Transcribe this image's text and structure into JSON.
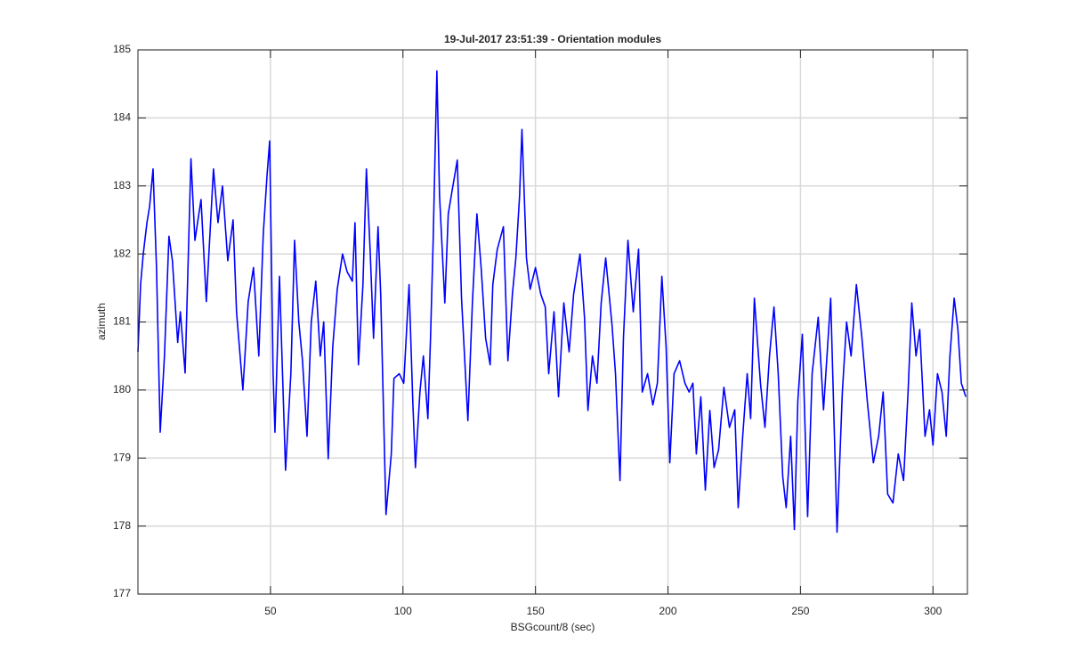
{
  "chart_data": {
    "type": "line",
    "title": "19-Jul-2017 23:51:39 - Orientation modules",
    "x_label": "BSGcount/8 (sec)",
    "y_label": "azimuth",
    "xlim": [
      0,
      313
    ],
    "xticks": [
      50,
      100,
      150,
      200,
      250,
      300
    ],
    "ylim": [
      177,
      185
    ],
    "yticks": [
      177,
      178,
      179,
      180,
      181,
      182,
      183,
      184,
      185
    ],
    "grid": true,
    "x": [
      0,
      1,
      2,
      3.4,
      4.4,
      5.7,
      7,
      8.4,
      10,
      11.7,
      13,
      15,
      16,
      17.8,
      20,
      21.5,
      23.8,
      25.8,
      28.5,
      30.2,
      31.9,
      33.9,
      35.9,
      37.2,
      39.6,
      41.6,
      43.6,
      45.6,
      47.3,
      48.7,
      49.7,
      51,
      51.7,
      53.4,
      55.7,
      57.7,
      59.1,
      60.7,
      62.1,
      63.8,
      65.4,
      67.1,
      68.8,
      70.1,
      71.8,
      73.5,
      75.2,
      77.2,
      78.9,
      80.9,
      81.9,
      83.2,
      84.9,
      86.2,
      87.6,
      88.9,
      90.6,
      91.6,
      93.6,
      95.6,
      96.6,
      98.6,
      100.3,
      102.3,
      103.7,
      104.7,
      106.4,
      107.7,
      109.4,
      110.4,
      111.4,
      112.8,
      113.8,
      115.8,
      117.1,
      118.5,
      120.5,
      122.1,
      124.5,
      126.2,
      127.9,
      129.5,
      131.2,
      132.9,
      133.9,
      135.6,
      137.9,
      139.6,
      141.3,
      142.6,
      144,
      144.9,
      146.6,
      148,
      150,
      152,
      153.7,
      155,
      157,
      158.7,
      160.7,
      162.7,
      164.4,
      166.8,
      168.5,
      169.8,
      171.5,
      173.2,
      174.8,
      176.5,
      178.9,
      180.2,
      181.9,
      183.2,
      184.9,
      186.9,
      188.9,
      190.3,
      192.3,
      194.3,
      196,
      197.7,
      199.3,
      200.7,
      202.3,
      204.4,
      206.4,
      208,
      209.4,
      210.7,
      212.4,
      214.1,
      215.8,
      217.4,
      219.1,
      221.1,
      223.2,
      225.2,
      226.5,
      228.2,
      229.9,
      231.2,
      232.6,
      234.9,
      236.6,
      238.3,
      240,
      241.6,
      243.3,
      244.6,
      246.3,
      247.7,
      249,
      250.7,
      252.7,
      254.4,
      256.7,
      258.7,
      261.4,
      263.8,
      265.8,
      267.4,
      269.1,
      271.1,
      273.2,
      275.2,
      277.5,
      279.5,
      281.2,
      282.9,
      284.9,
      286.9,
      288.9,
      290.6,
      292,
      293.6,
      295,
      297,
      298.7,
      300,
      301.7,
      303.4,
      305,
      306.4,
      308,
      309.4,
      310.7,
      312.4
    ],
    "series": [
      {
        "name": "azimuth",
        "color": "#0000ff",
        "values": [
          180.56,
          181.55,
          182.0,
          182.46,
          182.7,
          183.25,
          181.8,
          179.38,
          180.5,
          182.26,
          181.9,
          180.7,
          181.15,
          180.25,
          183.4,
          182.2,
          182.8,
          181.3,
          183.25,
          182.46,
          183.0,
          181.9,
          182.5,
          181.15,
          180.0,
          181.3,
          181.8,
          180.5,
          182.3,
          183.15,
          183.66,
          180.24,
          179.38,
          181.67,
          178.82,
          180.24,
          182.2,
          181.0,
          180.43,
          179.32,
          181.0,
          181.6,
          180.5,
          181.0,
          178.99,
          180.63,
          181.48,
          182.0,
          181.74,
          181.6,
          182.46,
          180.37,
          181.55,
          183.25,
          182.07,
          180.76,
          182.4,
          181.41,
          178.17,
          179.06,
          180.17,
          180.24,
          180.1,
          181.55,
          179.84,
          178.86,
          179.97,
          180.5,
          179.58,
          180.76,
          182.2,
          184.69,
          182.86,
          181.28,
          182.59,
          182.92,
          183.38,
          181.35,
          179.55,
          181.28,
          182.59,
          181.8,
          180.76,
          180.37,
          181.55,
          182.07,
          182.4,
          180.43,
          181.41,
          181.94,
          182.85,
          183.83,
          181.94,
          181.48,
          181.8,
          181.41,
          181.22,
          180.24,
          181.15,
          179.9,
          181.28,
          180.56,
          181.41,
          182.0,
          181.07,
          179.7,
          180.5,
          180.1,
          181.28,
          181.94,
          180.95,
          180.24,
          178.67,
          180.76,
          182.2,
          181.15,
          182.07,
          179.97,
          180.24,
          179.78,
          180.1,
          181.67,
          180.63,
          178.93,
          180.24,
          180.43,
          180.1,
          179.97,
          180.1,
          179.06,
          179.9,
          178.53,
          179.7,
          178.86,
          179.12,
          180.04,
          179.45,
          179.71,
          178.27,
          179.32,
          180.24,
          179.58,
          181.35,
          180.1,
          179.45,
          180.5,
          181.22,
          180.24,
          178.73,
          178.27,
          179.32,
          177.95,
          179.84,
          180.82,
          178.14,
          180.24,
          181.07,
          179.71,
          181.35,
          177.91,
          179.97,
          181.0,
          180.5,
          181.55,
          180.76,
          179.84,
          178.93,
          179.32,
          179.97,
          178.47,
          178.34,
          179.06,
          178.67,
          179.97,
          181.28,
          180.5,
          180.89,
          179.32,
          179.71,
          179.19,
          180.24,
          179.97,
          179.32,
          180.5,
          181.35,
          180.89,
          180.1,
          179.9
        ]
      }
    ]
  }
}
